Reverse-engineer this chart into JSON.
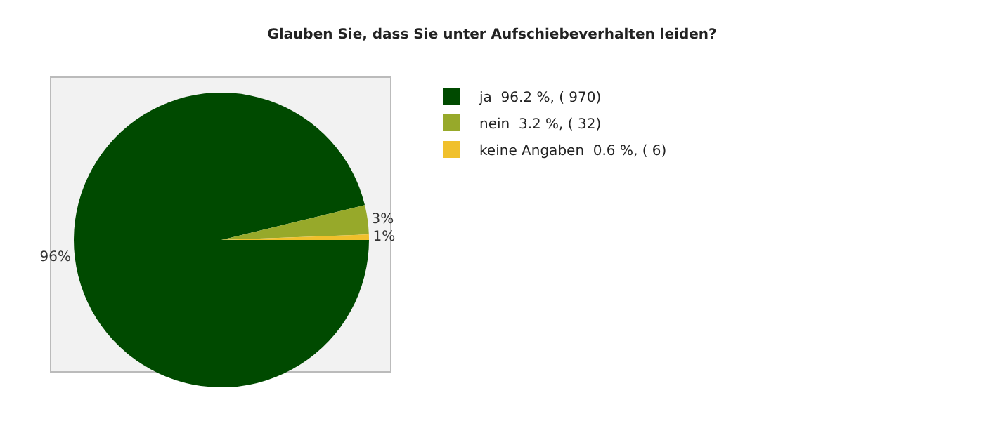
{
  "chart_data": {
    "type": "pie",
    "title": "Glauben Sie, dass Sie unter Aufschiebeverhalten leiden?",
    "categories": [
      "ja  96.2 %, ( 970)",
      "nein  3.2 %, ( 32)",
      "keine Angaben  0.6 %, ( 6)"
    ],
    "values": [
      96.2,
      3.2,
      0.6
    ],
    "colors": [
      "#004a00",
      "#97a92a",
      "#f0c02c"
    ],
    "value_labels": [
      "96%",
      "3%",
      "1%"
    ],
    "legend": "right"
  }
}
